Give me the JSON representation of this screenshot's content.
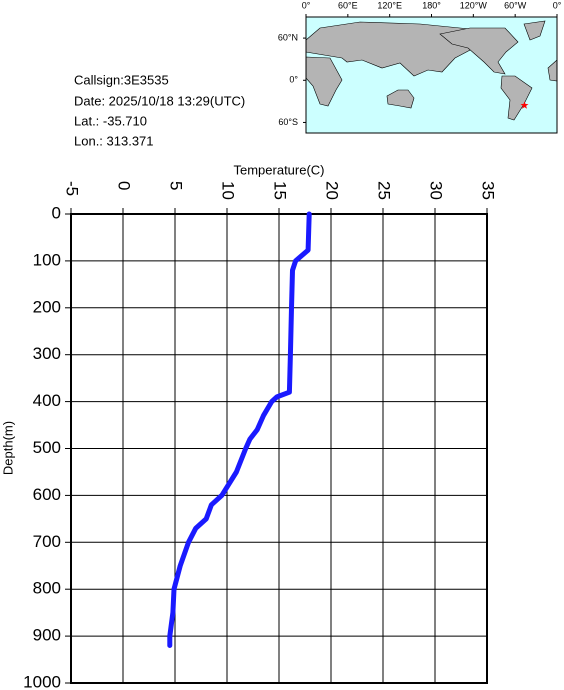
{
  "info": {
    "callsign": "Callsign:3E3535",
    "date": "Date:  2025/10/18 13:29(UTC)",
    "lat": "Lat.:  -35.710",
    "lon": "Lon.:  313.371"
  },
  "map": {
    "lonlim": [
      0,
      360
    ],
    "latlim": [
      -75,
      90
    ],
    "lonticks": [
      {
        "value": 0,
        "label": "0°"
      },
      {
        "value": 60,
        "label": "60°E"
      },
      {
        "value": 120,
        "label": "120°E"
      },
      {
        "value": 180,
        "label": "180°"
      },
      {
        "value": 240,
        "label": "120°W"
      },
      {
        "value": 300,
        "label": "60°W"
      },
      {
        "value": 360,
        "label": "0°"
      }
    ],
    "latticks": [
      {
        "value": 60,
        "label": "60°N"
      },
      {
        "value": 0,
        "label": "0°"
      },
      {
        "value": -60,
        "label": "60°S"
      }
    ],
    "station": {
      "lon": 313.371,
      "lat": -35.71,
      "color": "#ff0000"
    }
  },
  "chart_data": {
    "type": "line",
    "xlabel": "Temperature(C)",
    "ylabel": "Depth(m)",
    "x": [
      17.9,
      17.8,
      16.6,
      16.3,
      16.2,
      16.1,
      16.0,
      14.8,
      14.3,
      13.5,
      12.9,
      12.2,
      11.8,
      10.9,
      9.5,
      8.5,
      8.0,
      7.0,
      6.3,
      5.5,
      4.9,
      4.8,
      4.5,
      4.5
    ],
    "values": [
      0,
      77,
      100,
      120,
      200,
      300,
      380,
      390,
      400,
      430,
      460,
      480,
      500,
      550,
      600,
      620,
      650,
      670,
      700,
      750,
      800,
      850,
      900,
      920
    ],
    "color": "#1a1aff",
    "xlim": [
      -5,
      35
    ],
    "xticks": [
      -5,
      0,
      5,
      10,
      15,
      20,
      25,
      30,
      35
    ],
    "ylim": [
      0,
      1000
    ],
    "yticks": [
      0,
      100,
      200,
      300,
      400,
      500,
      600,
      700,
      800,
      900,
      1000
    ],
    "grid": true
  }
}
